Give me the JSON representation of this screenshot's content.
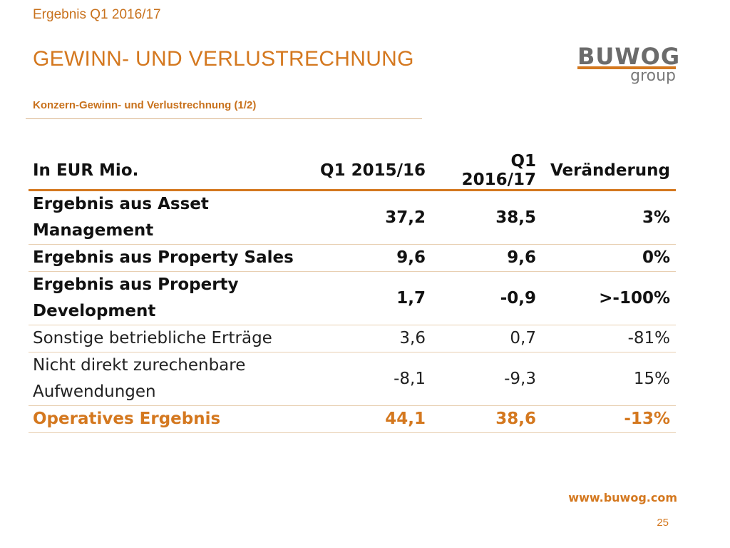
{
  "header": {
    "top_label": "Ergebnis Q1 2016/17",
    "title": "GEWINN- UND VERLUSTRECHNUNG",
    "subtitle": "Konzern-Gewinn- und Verlustrechnung (1/2)"
  },
  "logo": {
    "word": "BUWOG",
    "sub": "group"
  },
  "table": {
    "columns": [
      "In EUR Mio.",
      "Q1 2015/16",
      "Q1 2016/17",
      "Veränderung"
    ],
    "rows": [
      {
        "label": "Ergebnis aus Asset Management",
        "q1_2015_16": "37,2",
        "q1_2016_17": "38,5",
        "change": "3%"
      },
      {
        "label": "Ergebnis aus Property Sales",
        "q1_2015_16": "9,6",
        "q1_2016_17": "9,6",
        "change": "0%"
      },
      {
        "label": "Ergebnis aus Property Development",
        "q1_2015_16": "1,7",
        "q1_2016_17": "-0,9",
        "change": ">-100%"
      },
      {
        "label": "Sonstige betriebliche Erträge",
        "q1_2015_16": "3,6",
        "q1_2016_17": "0,7",
        "change": "-81%"
      },
      {
        "label": "Nicht direkt zurechenbare Aufwendungen",
        "q1_2015_16": "-8,1",
        "q1_2016_17": "-9,3",
        "change": "15%"
      },
      {
        "label": "Operatives Ergebnis",
        "q1_2015_16": "44,1",
        "q1_2016_17": "38,6",
        "change": "-13%"
      }
    ]
  },
  "footer": {
    "website": "www.buwog.com",
    "page_number": "25"
  },
  "colors": {
    "accent": "#d4781f",
    "text": "#1a1a1a",
    "logo_gray": "#6b6b6b"
  }
}
